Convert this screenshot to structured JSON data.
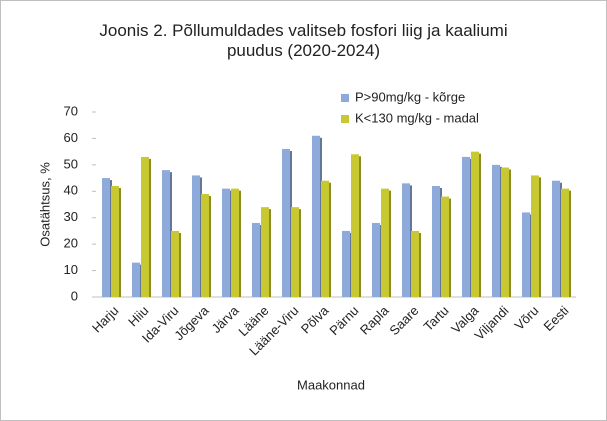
{
  "chart_data": {
    "type": "bar",
    "title": "Joonis 2. Põllumuldades valitseb fosfori liig ja kaaliumi puudus (2020-2024)",
    "x_label": "Maakonnad",
    "y_label": "Osatähtsus, %",
    "categories": [
      "Harju",
      "Hiiu",
      "Ida-Viru",
      "Jõgeva",
      "Järva",
      "Lääne",
      "Lääne-Viru",
      "Põlva",
      "Pärnu",
      "Rapla",
      "Saare",
      "Tartu",
      "Valga",
      "Viljandi",
      "Võru",
      "Eesti"
    ],
    "series": [
      {
        "name": "P>90mg/kg - kõrge",
        "color": "#8eaadb",
        "values": [
          45,
          13,
          48,
          46,
          41,
          28,
          56,
          61,
          25,
          28,
          43,
          42,
          53,
          50,
          32,
          44
        ]
      },
      {
        "name": "K<130 mg/kg - madal",
        "color": "#c8c832",
        "values": [
          42,
          53,
          25,
          39,
          41,
          34,
          34,
          44,
          54,
          41,
          25,
          38,
          55,
          49,
          46,
          41
        ]
      }
    ],
    "ylim": [
      0,
      70
    ],
    "yticks": [
      0,
      10,
      20,
      30,
      40,
      50,
      60,
      70
    ],
    "legend": "top-right"
  }
}
